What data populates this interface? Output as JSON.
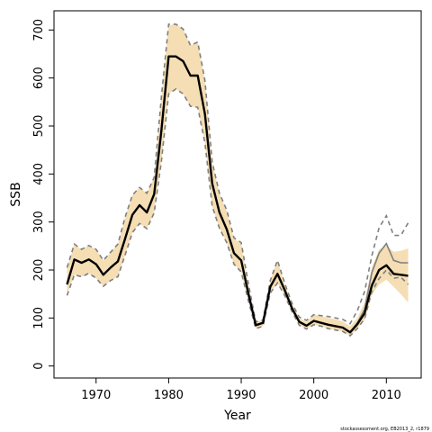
{
  "chart_data": {
    "type": "line",
    "title": "",
    "xlabel": "Year",
    "ylabel": "SSB",
    "xlim": [
      1964.2,
      2014.8
    ],
    "ylim": [
      -25,
      740
    ],
    "xticks": [
      1970,
      1980,
      1990,
      2000,
      2010
    ],
    "yticks": [
      0,
      100,
      200,
      300,
      400,
      500,
      600,
      700
    ],
    "grid": false,
    "legend": "none",
    "credit": "stockassessment.org, EB2013_2, r1879",
    "colors": {
      "band": "#f5deb3",
      "estimate": "#000000",
      "retro": "#7f7f7f",
      "axis": "#000000"
    },
    "x": [
      1966,
      1967,
      1968,
      1969,
      1970,
      1971,
      1972,
      1973,
      1974,
      1975,
      1976,
      1977,
      1978,
      1979,
      1980,
      1981,
      1982,
      1983,
      1984,
      1985,
      1986,
      1987,
      1988,
      1989,
      1990,
      1991,
      1992,
      1993,
      1994,
      1995,
      1996,
      1997,
      1998,
      1999,
      2000,
      2001,
      2002,
      2003,
      2004,
      2005,
      2006,
      2007,
      2008,
      2009,
      2010,
      2011,
      2012,
      2013
    ],
    "series": [
      {
        "role": "estimate",
        "values": [
          170,
          222,
          215,
          222,
          212,
          190,
          205,
          218,
          265,
          315,
          335,
          320,
          358,
          490,
          645,
          645,
          635,
          605,
          605,
          525,
          380,
          320,
          285,
          235,
          220,
          150,
          85,
          90,
          165,
          192,
          158,
          120,
          92,
          84,
          94,
          90,
          86,
          83,
          80,
          70,
          87,
          110,
          168,
          200,
          210,
          192,
          190,
          188
        ]
      },
      {
        "role": "band-upper",
        "values": [
          205,
          252,
          243,
          251,
          243,
          220,
          237,
          254,
          310,
          356,
          372,
          360,
          393,
          560,
          710,
          712,
          702,
          668,
          675,
          595,
          425,
          360,
          323,
          265,
          255,
          168,
          92,
          96,
          178,
          220,
          170,
          129,
          100,
          92,
          107,
          104,
          100,
          97,
          93,
          82,
          100,
          133,
          205,
          243,
          250,
          238,
          240,
          245
        ]
      },
      {
        "role": "band-lower",
        "values": [
          147,
          190,
          186,
          193,
          183,
          166,
          178,
          186,
          231,
          278,
          297,
          286,
          319,
          426,
          567,
          577,
          567,
          541,
          539,
          465,
          333,
          287,
          257,
          212,
          196,
          135,
          78,
          83,
          152,
          173,
          147,
          113,
          85,
          77,
          86,
          83,
          78,
          75,
          72,
          63,
          78,
          96,
          148,
          170,
          180,
          165,
          150,
          132
        ]
      },
      {
        "role": "retro-upper",
        "values": [
          205,
          254,
          243,
          251,
          243,
          220,
          237,
          254,
          310,
          356,
          372,
          360,
          393,
          560,
          712,
          712,
          702,
          668,
          675,
          595,
          425,
          360,
          325,
          267,
          257,
          170,
          92,
          96,
          178,
          220,
          172,
          130,
          102,
          95,
          107,
          105,
          103,
          100,
          97,
          88,
          115,
          155,
          230,
          288,
          313,
          272,
          272,
          298
        ]
      },
      {
        "role": "retro-lower",
        "values": [
          147,
          190,
          186,
          193,
          183,
          166,
          178,
          186,
          231,
          278,
          297,
          286,
          319,
          426,
          567,
          577,
          567,
          541,
          539,
          465,
          333,
          287,
          257,
          212,
          196,
          135,
          78,
          83,
          152,
          173,
          147,
          113,
          85,
          77,
          86,
          83,
          78,
          75,
          72,
          63,
          78,
          98,
          155,
          182,
          200,
          183,
          185,
          170
        ]
      },
      {
        "role": "retro-mid",
        "values": [
          170,
          222,
          215,
          222,
          212,
          190,
          205,
          218,
          265,
          315,
          335,
          320,
          358,
          490,
          645,
          645,
          635,
          605,
          605,
          525,
          380,
          320,
          285,
          235,
          220,
          150,
          85,
          90,
          165,
          192,
          158,
          120,
          92,
          84,
          94,
          90,
          86,
          83,
          80,
          70,
          90,
          118,
          195,
          235,
          255,
          220,
          215,
          215
        ]
      }
    ]
  }
}
